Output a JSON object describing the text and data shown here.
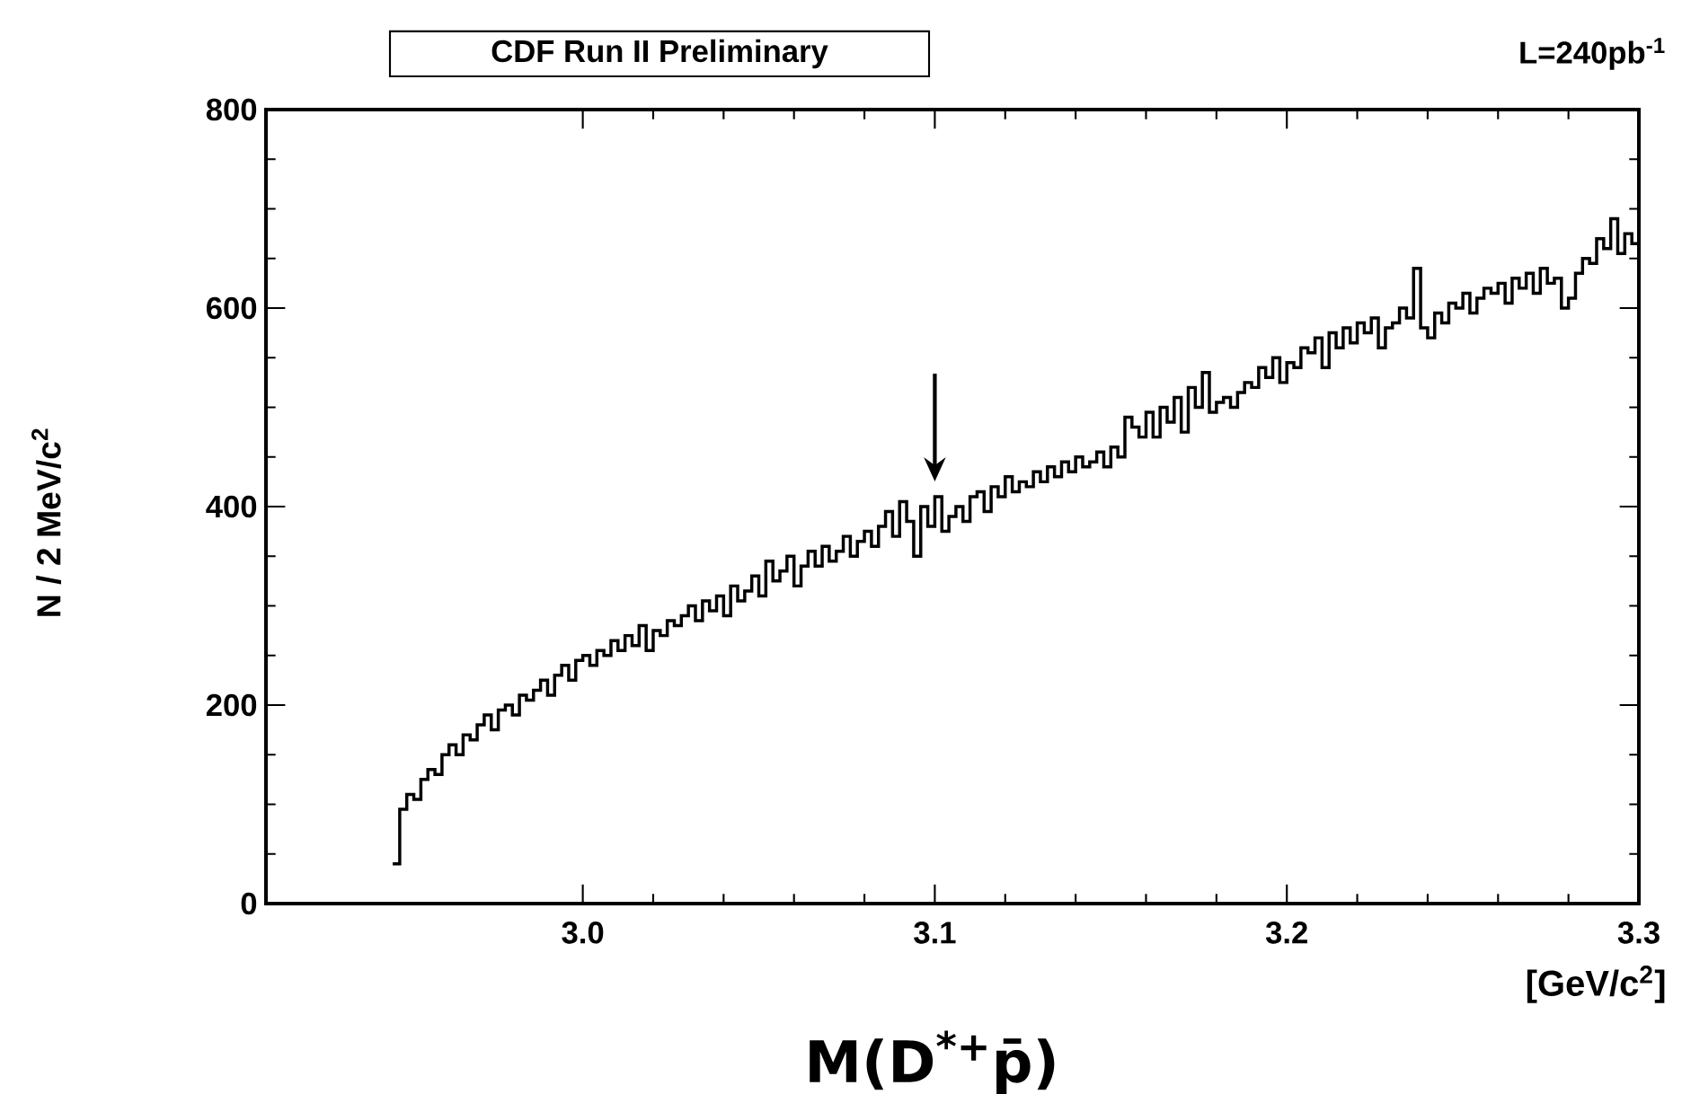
{
  "chart_data": {
    "type": "histogram",
    "title": "CDF Run II Preliminary",
    "subtitle": "L=240pb$^{-1}$",
    "xlabel": "M(D$^{*+}$p̄)",
    "ylabel": "N / 2 MeV/c$^{2}$",
    "annotations": [
      "[GeV/c$^{2}$]"
    ],
    "color": "#000000",
    "xlim": [
      2.91,
      3.3
    ],
    "ylim": [
      0,
      800
    ],
    "xticks": [
      {
        "value": 3.0,
        "label": "3.0"
      },
      3.1,
      3.2,
      {
        "value": 3.3,
        "label": "3.3"
      }
    ],
    "yticks": [
      0,
      200,
      400,
      600,
      800
    ],
    "bins": [
      2.946,
      2.948,
      2.95,
      2.952,
      2.954,
      2.956,
      2.958,
      2.96,
      2.962,
      2.964,
      2.966,
      2.968,
      2.97,
      2.972,
      2.974,
      2.976,
      2.978,
      2.98,
      2.982,
      2.984,
      2.986,
      2.988,
      2.99,
      2.992,
      2.994,
      2.996,
      2.998,
      3.0,
      3.002,
      3.004,
      3.006,
      3.008,
      3.01,
      3.012,
      3.014,
      3.016,
      3.018,
      3.02,
      3.022,
      3.024,
      3.026,
      3.028,
      3.03,
      3.032,
      3.034,
      3.036,
      3.038,
      3.04,
      3.042,
      3.044,
      3.046,
      3.048,
      3.05,
      3.052,
      3.054,
      3.056,
      3.058,
      3.06,
      3.062,
      3.064,
      3.066,
      3.068,
      3.07,
      3.072,
      3.074,
      3.076,
      3.078,
      3.08,
      3.082,
      3.084,
      3.086,
      3.088,
      3.09,
      3.092,
      3.094,
      3.096,
      3.098,
      3.1,
      3.102,
      3.104,
      3.106,
      3.108,
      3.11,
      3.112,
      3.114,
      3.116,
      3.118,
      3.12,
      3.122,
      3.124,
      3.126,
      3.128,
      3.13,
      3.132,
      3.134,
      3.136,
      3.138,
      3.14,
      3.142,
      3.144,
      3.146,
      3.148,
      3.15,
      3.152,
      3.154,
      3.156,
      3.158,
      3.16,
      3.162,
      3.164,
      3.166,
      3.168,
      3.17,
      3.172,
      3.174,
      3.176,
      3.178,
      3.18,
      3.182,
      3.184,
      3.186,
      3.188,
      3.19,
      3.192,
      3.194,
      3.196,
      3.198,
      3.2,
      3.202,
      3.204,
      3.206,
      3.208,
      3.21,
      3.212,
      3.214,
      3.216,
      3.218,
      3.22,
      3.222,
      3.224,
      3.226,
      3.228,
      3.23,
      3.232,
      3.234,
      3.236,
      3.238,
      3.24,
      3.242,
      3.244,
      3.246,
      3.248,
      3.25,
      3.252,
      3.254,
      3.256,
      3.258,
      3.26,
      3.262,
      3.264,
      3.266,
      3.268,
      3.27,
      3.272,
      3.274,
      3.276,
      3.278,
      3.28,
      3.282,
      3.284,
      3.286,
      3.288,
      3.29,
      3.292,
      3.294,
      3.296,
      3.298,
      3.3
    ],
    "values": [
      40,
      95,
      110,
      105,
      125,
      135,
      130,
      150,
      160,
      150,
      170,
      165,
      180,
      190,
      175,
      195,
      200,
      190,
      210,
      205,
      215,
      225,
      210,
      230,
      240,
      225,
      245,
      250,
      240,
      255,
      250,
      265,
      255,
      270,
      260,
      280,
      255,
      275,
      270,
      285,
      280,
      290,
      300,
      285,
      305,
      295,
      310,
      290,
      320,
      305,
      315,
      330,
      310,
      345,
      325,
      335,
      350,
      320,
      340,
      355,
      340,
      360,
      345,
      355,
      370,
      350,
      365,
      375,
      360,
      380,
      395,
      370,
      405,
      385,
      350,
      400,
      380,
      410,
      375,
      390,
      400,
      385,
      410,
      415,
      395,
      420,
      410,
      430,
      415,
      425,
      420,
      435,
      425,
      440,
      430,
      445,
      435,
      450,
      440,
      445,
      455,
      440,
      460,
      450,
      490,
      480,
      470,
      495,
      470,
      500,
      485,
      510,
      475,
      520,
      500,
      535,
      495,
      505,
      510,
      500,
      515,
      525,
      520,
      540,
      530,
      550,
      525,
      545,
      540,
      560,
      555,
      570,
      540,
      575,
      560,
      580,
      565,
      585,
      575,
      590,
      560,
      580,
      585,
      600,
      590,
      640,
      580,
      570,
      595,
      585,
      605,
      600,
      615,
      595,
      610,
      620,
      615,
      625,
      605,
      630,
      620,
      635,
      615,
      640,
      625,
      630,
      600,
      610,
      635,
      650,
      645,
      670,
      660,
      690,
      655,
      675,
      665
    ]
  }
}
